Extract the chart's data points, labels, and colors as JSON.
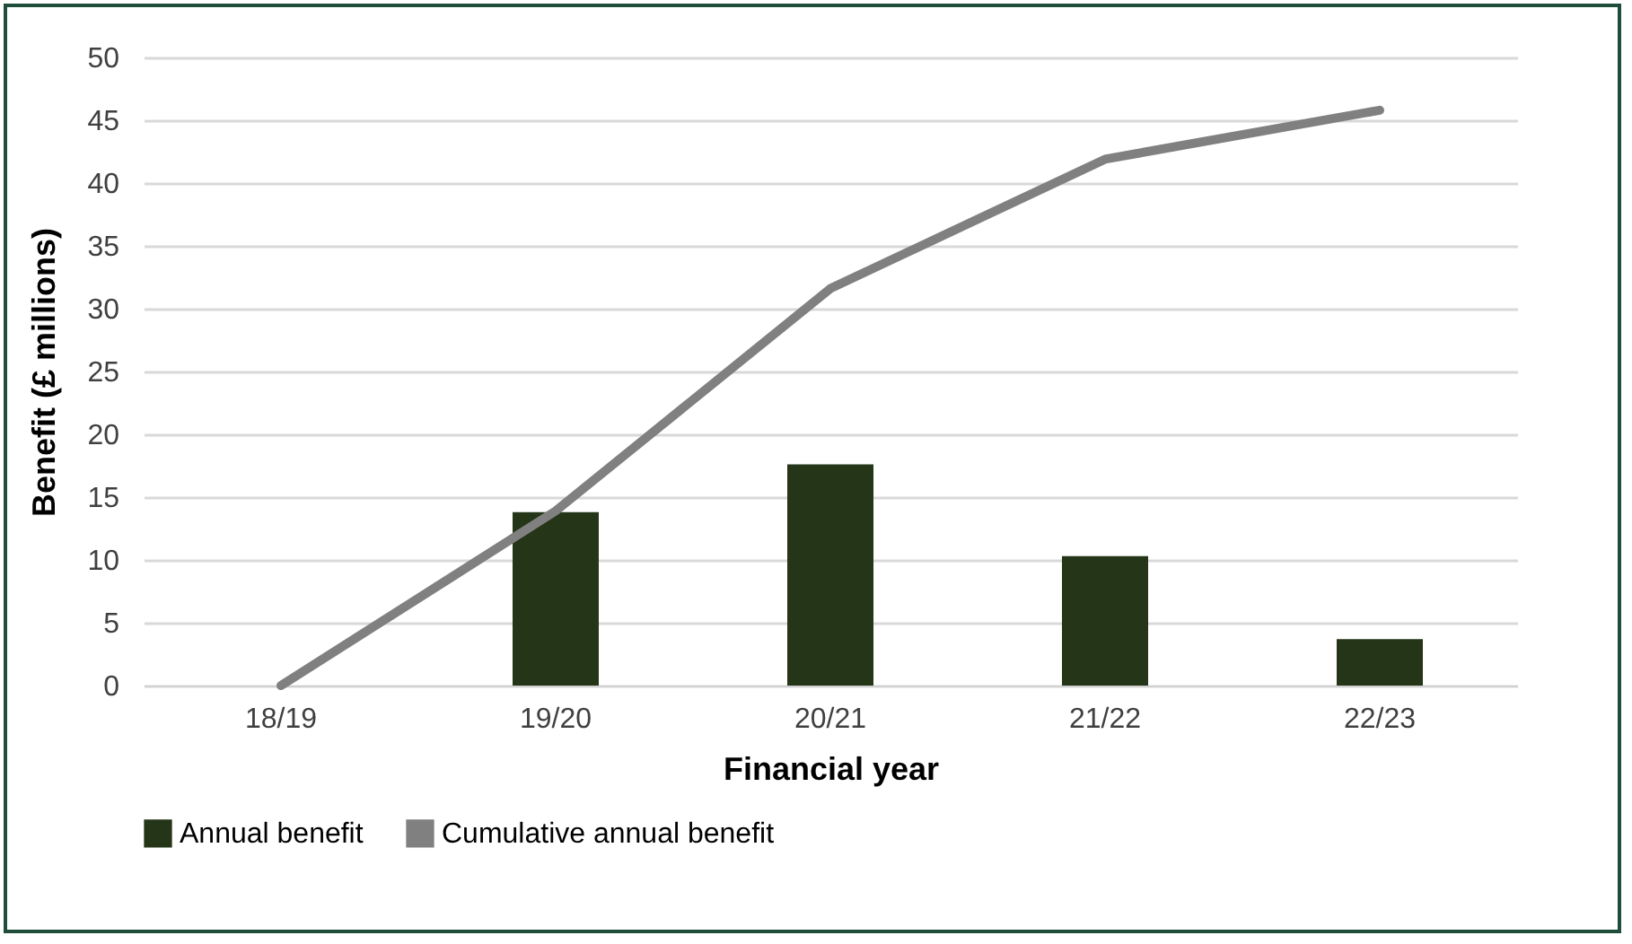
{
  "chart_data": {
    "type": "bar",
    "xlabel": "Financial year",
    "ylabel": "Benefit (£ millions)",
    "categories": [
      "18/19",
      "19/20",
      "20/21",
      "21/22",
      "22/23"
    ],
    "series": [
      {
        "name": "Annual benefit",
        "color": "#243518",
        "values": [
          null,
          13.8,
          17.6,
          10.3,
          3.7
        ]
      },
      {
        "name": "Cumulative annual benefit",
        "type": "line",
        "color": "#808080",
        "values": [
          0,
          13.9,
          31.6,
          41.9,
          45.8
        ]
      }
    ],
    "ylim": [
      0,
      50
    ],
    "yticks": [
      0,
      5,
      10,
      15,
      20,
      25,
      30,
      35,
      40,
      45,
      50
    ],
    "grid": "y",
    "legend": "bottom"
  }
}
